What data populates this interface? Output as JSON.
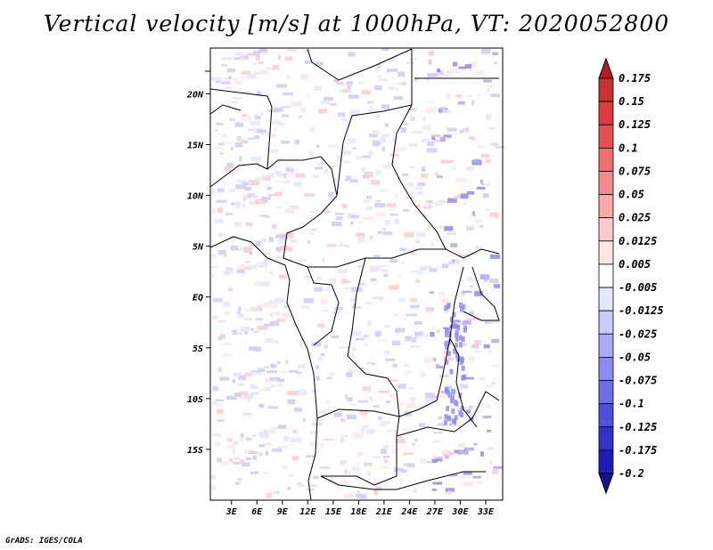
{
  "chart_data": {
    "type": "heatmap",
    "title": "Vertical velocity [m/s] at 1000hPa, VT: 2020052800",
    "xlabel": "",
    "ylabel": "",
    "x_ticks": [
      "3E",
      "6E",
      "9E",
      "12E",
      "15E",
      "18E",
      "21E",
      "24E",
      "27E",
      "30E",
      "33E"
    ],
    "y_ticks": [
      "20N",
      "15N",
      "10N",
      "5N",
      "EQ",
      "5S",
      "10S",
      "15S"
    ],
    "xlim": [
      0.5,
      35
    ],
    "ylim": [
      -20,
      24.5
    ],
    "colorbar": {
      "labels": [
        "0.175",
        "0.15",
        "0.125",
        "0.1",
        "0.075",
        "0.05",
        "0.025",
        "0.0125",
        "0.005",
        "-0.005",
        "-0.0125",
        "-0.025",
        "-0.05",
        "-0.075",
        "-0.1",
        "-0.125",
        "-0.175",
        "-0.2"
      ],
      "colors": [
        "#b41e1e",
        "#c83232",
        "#dc3c3c",
        "#e65050",
        "#f06e6e",
        "#f58c8c",
        "#faaaaa",
        "#fccccc",
        "#fee6e6",
        "#ffffff",
        "#e6e6fe",
        "#ccccfa",
        "#aaaaf5",
        "#8c8cf0",
        "#6e6ee6",
        "#5050dc",
        "#3232c8",
        "#1e1eb4",
        "#14148c"
      ]
    }
  },
  "credit": "GrADS: IGES/COLA"
}
